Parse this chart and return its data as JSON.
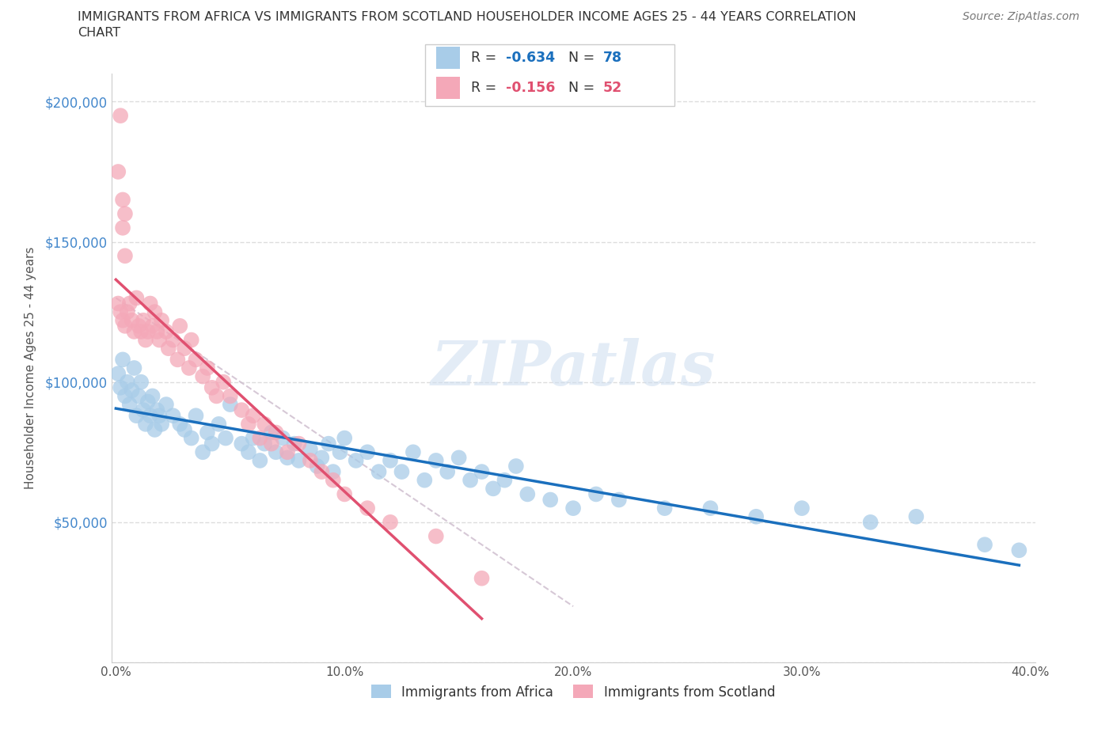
{
  "title_line1": "IMMIGRANTS FROM AFRICA VS IMMIGRANTS FROM SCOTLAND HOUSEHOLDER INCOME AGES 25 - 44 YEARS CORRELATION",
  "title_line2": "CHART",
  "source_text": "Source: ZipAtlas.com",
  "watermark": "ZIPatlas",
  "ylabel": "Householder Income Ages 25 - 44 years",
  "xlim": [
    -0.002,
    0.402
  ],
  "ylim": [
    0,
    210000
  ],
  "xticks": [
    0.0,
    0.05,
    0.1,
    0.15,
    0.2,
    0.25,
    0.3,
    0.35,
    0.4
  ],
  "xticklabels": [
    "0.0%",
    "",
    "10.0%",
    "",
    "20.0%",
    "",
    "30.0%",
    "",
    "40.0%"
  ],
  "yticks": [
    0,
    50000,
    100000,
    150000,
    200000
  ],
  "yticklabels": [
    "",
    "$50,000",
    "$100,000",
    "$150,000",
    "$200,000"
  ],
  "africa_color": "#a8cce8",
  "scotland_color": "#f4a8b8",
  "africa_line_color": "#1a6fbd",
  "scotland_line_color": "#e05070",
  "dash_line_color": "#ccbbcc",
  "background_color": "#ffffff",
  "grid_color": "#dddddd",
  "legend1_R": "-0.634",
  "legend1_N": "78",
  "legend2_R": "-0.156",
  "legend2_N": "52",
  "africa_legend_label": "Immigrants from Africa",
  "scotland_legend_label": "Immigrants from Scotland",
  "africa_x": [
    0.001,
    0.002,
    0.003,
    0.004,
    0.005,
    0.006,
    0.007,
    0.008,
    0.009,
    0.01,
    0.011,
    0.012,
    0.013,
    0.014,
    0.015,
    0.016,
    0.017,
    0.018,
    0.019,
    0.02,
    0.022,
    0.025,
    0.028,
    0.03,
    0.033,
    0.035,
    0.038,
    0.04,
    0.042,
    0.045,
    0.048,
    0.05,
    0.055,
    0.058,
    0.06,
    0.063,
    0.065,
    0.068,
    0.07,
    0.073,
    0.075,
    0.078,
    0.08,
    0.085,
    0.088,
    0.09,
    0.093,
    0.095,
    0.098,
    0.1,
    0.105,
    0.11,
    0.115,
    0.12,
    0.125,
    0.13,
    0.135,
    0.14,
    0.145,
    0.15,
    0.155,
    0.16,
    0.165,
    0.17,
    0.175,
    0.18,
    0.19,
    0.2,
    0.21,
    0.22,
    0.24,
    0.26,
    0.28,
    0.3,
    0.33,
    0.35,
    0.38,
    0.395
  ],
  "africa_y": [
    103000,
    98000,
    108000,
    95000,
    100000,
    92000,
    97000,
    105000,
    88000,
    95000,
    100000,
    90000,
    85000,
    93000,
    88000,
    95000,
    83000,
    90000,
    88000,
    85000,
    92000,
    88000,
    85000,
    83000,
    80000,
    88000,
    75000,
    82000,
    78000,
    85000,
    80000,
    92000,
    78000,
    75000,
    80000,
    72000,
    78000,
    82000,
    75000,
    80000,
    73000,
    78000,
    72000,
    76000,
    70000,
    73000,
    78000,
    68000,
    75000,
    80000,
    72000,
    75000,
    68000,
    72000,
    68000,
    75000,
    65000,
    72000,
    68000,
    73000,
    65000,
    68000,
    62000,
    65000,
    70000,
    60000,
    58000,
    55000,
    60000,
    58000,
    55000,
    55000,
    52000,
    55000,
    50000,
    52000,
    42000,
    40000
  ],
  "scotland_x": [
    0.001,
    0.002,
    0.003,
    0.004,
    0.005,
    0.006,
    0.007,
    0.008,
    0.009,
    0.01,
    0.011,
    0.012,
    0.013,
    0.014,
    0.015,
    0.016,
    0.017,
    0.018,
    0.019,
    0.02,
    0.022,
    0.023,
    0.025,
    0.027,
    0.028,
    0.03,
    0.032,
    0.033,
    0.035,
    0.038,
    0.04,
    0.042,
    0.044,
    0.047,
    0.05,
    0.055,
    0.058,
    0.06,
    0.063,
    0.065,
    0.068,
    0.07,
    0.075,
    0.08,
    0.085,
    0.09,
    0.095,
    0.1,
    0.11,
    0.12,
    0.14,
    0.16
  ],
  "scotland_y": [
    128000,
    125000,
    122000,
    120000,
    125000,
    128000,
    122000,
    118000,
    130000,
    120000,
    118000,
    122000,
    115000,
    118000,
    128000,
    120000,
    125000,
    118000,
    115000,
    122000,
    118000,
    112000,
    115000,
    108000,
    120000,
    112000,
    105000,
    115000,
    108000,
    102000,
    105000,
    98000,
    95000,
    100000,
    95000,
    90000,
    85000,
    88000,
    80000,
    85000,
    78000,
    82000,
    75000,
    78000,
    72000,
    68000,
    65000,
    60000,
    55000,
    50000,
    45000,
    30000
  ],
  "scotland_high_x": [
    0.001,
    0.002,
    0.003,
    0.003,
    0.004,
    0.004
  ],
  "scotland_high_y": [
    175000,
    195000,
    155000,
    165000,
    160000,
    145000
  ]
}
